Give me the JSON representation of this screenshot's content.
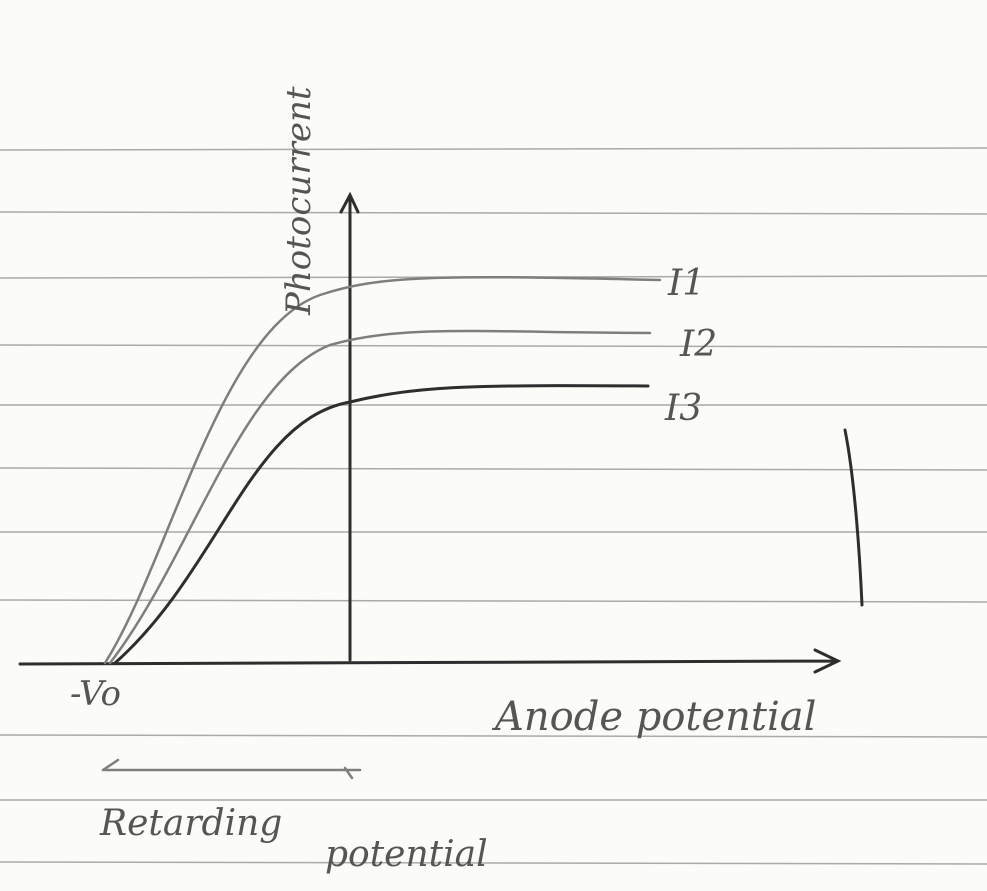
{
  "axes": {
    "y_label": "Photocurrent",
    "x_label": "Anode potential",
    "origin_label": "-Vo",
    "retarding_label": "Retarding",
    "retarding_label_2": "potential"
  },
  "curves": [
    {
      "label": "I1"
    },
    {
      "label": "I2"
    },
    {
      "label": "I3"
    }
  ]
}
